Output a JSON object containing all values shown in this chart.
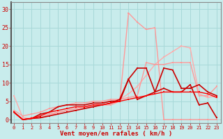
{
  "x": [
    0,
    1,
    2,
    3,
    4,
    5,
    6,
    7,
    8,
    9,
    10,
    11,
    12,
    13,
    14,
    15,
    16,
    17,
    18,
    19,
    20,
    21,
    22,
    23
  ],
  "lines": [
    {
      "y": [
        6.5,
        0.5,
        0.3,
        0.5,
        1.0,
        2.0,
        2.5,
        3.0,
        3.5,
        4.0,
        4.5,
        5.0,
        5.5,
        7.0,
        9.0,
        12.0,
        15.0,
        17.0,
        18.5,
        20.0,
        19.5,
        7.0,
        6.0,
        6.5
      ],
      "color": "#ffaaaa",
      "lw": 1.0
    },
    {
      "y": [
        2.5,
        1.0,
        1.5,
        2.0,
        3.0,
        3.5,
        4.0,
        4.5,
        4.5,
        5.0,
        5.0,
        5.5,
        5.5,
        6.0,
        6.5,
        15.5,
        15.0,
        15.0,
        15.5,
        15.5,
        15.5,
        6.5,
        6.5,
        9.0
      ],
      "color": "#ff9999",
      "lw": 1.0
    },
    {
      "y": [
        2.0,
        0.0,
        0.5,
        0.5,
        1.5,
        2.0,
        2.5,
        3.0,
        3.5,
        3.5,
        4.0,
        4.0,
        5.0,
        29.0,
        26.5,
        24.5,
        25.0,
        0.0,
        0.0,
        0.0,
        0.0,
        0.0,
        0.0,
        0.0
      ],
      "color": "#ff9999",
      "lw": 1.0
    },
    {
      "y": [
        2.0,
        0.0,
        0.3,
        0.5,
        1.0,
        1.5,
        2.0,
        2.5,
        3.0,
        3.5,
        4.0,
        4.5,
        5.5,
        11.0,
        14.0,
        14.0,
        7.5,
        8.5,
        7.5,
        7.5,
        9.5,
        4.0,
        4.5,
        0.5
      ],
      "color": "#cc0000",
      "lw": 1.2
    },
    {
      "y": [
        2.0,
        0.0,
        0.3,
        1.5,
        2.0,
        3.5,
        4.0,
        4.0,
        4.0,
        4.5,
        4.5,
        5.0,
        5.0,
        11.0,
        5.5,
        6.5,
        7.5,
        14.0,
        13.5,
        8.5,
        8.5,
        9.5,
        7.5,
        6.5
      ],
      "color": "#cc0000",
      "lw": 1.2
    },
    {
      "y": [
        2.0,
        0.0,
        0.3,
        1.0,
        2.0,
        2.5,
        3.0,
        3.5,
        3.5,
        4.0,
        4.0,
        4.5,
        5.0,
        5.5,
        6.0,
        6.5,
        7.0,
        7.5,
        7.5,
        7.5,
        7.5,
        7.5,
        7.0,
        6.0
      ],
      "color": "#ff0000",
      "lw": 1.0
    }
  ],
  "xlabel": "Vent moyen/en rafales ( km/h )",
  "yticks": [
    0,
    5,
    10,
    15,
    20,
    25,
    30
  ],
  "xticks": [
    0,
    1,
    2,
    3,
    4,
    5,
    6,
    7,
    8,
    9,
    10,
    11,
    12,
    13,
    14,
    15,
    16,
    17,
    18,
    19,
    20,
    21,
    22,
    23
  ],
  "ylim": [
    -1,
    32
  ],
  "xlim": [
    -0.3,
    23.5
  ],
  "bg_color": "#c8ecec",
  "grid_color": "#a8d8d8",
  "marker_size": 2.0
}
